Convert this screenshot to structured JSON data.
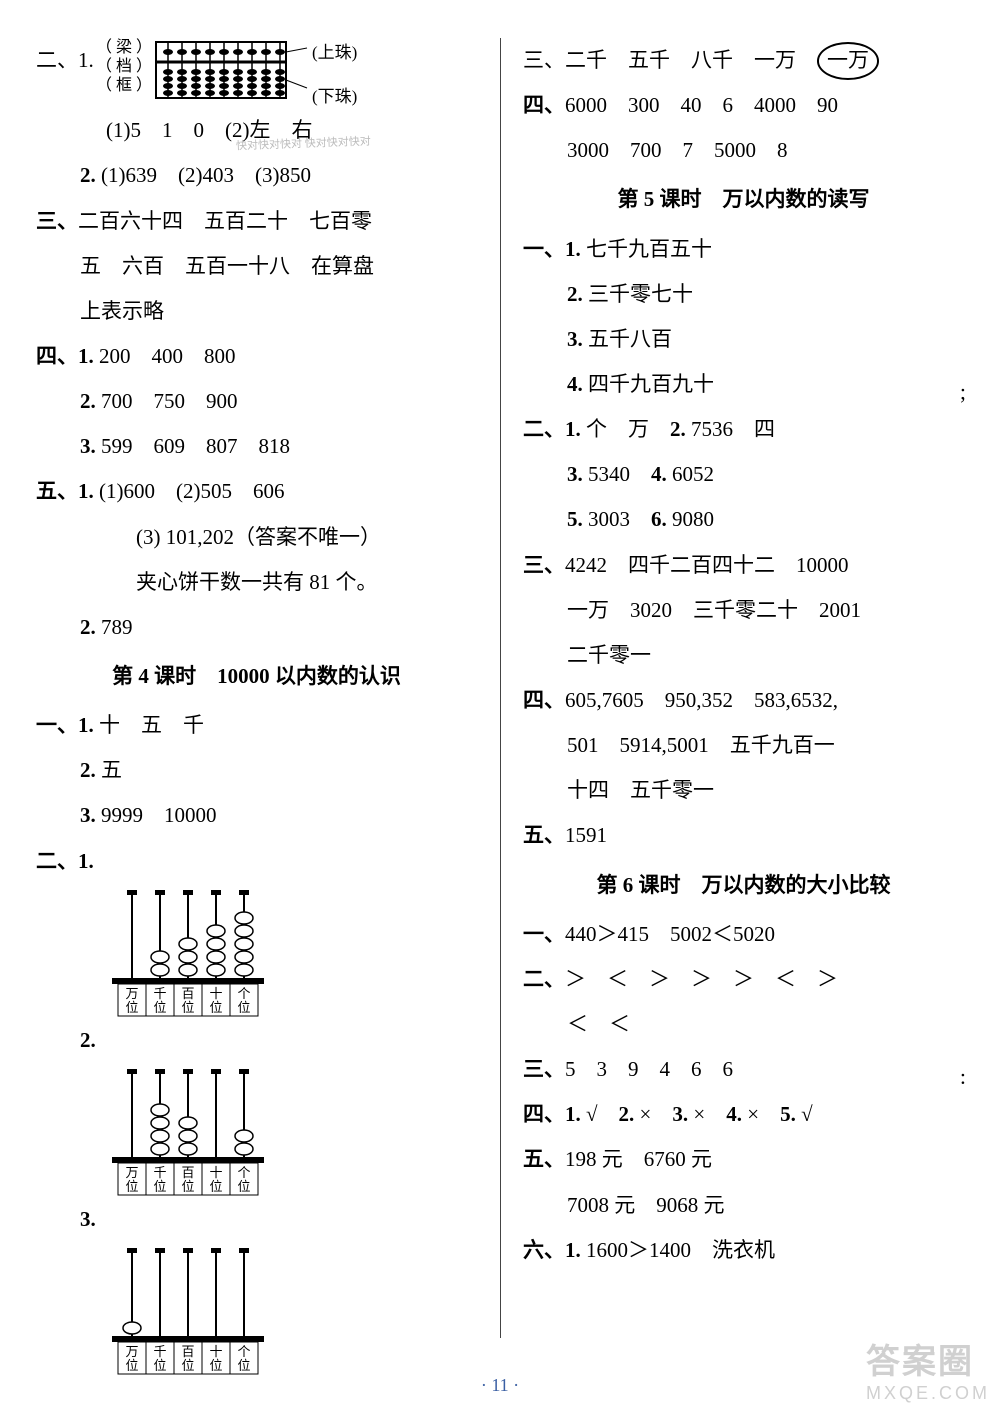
{
  "colors": {
    "text": "#000000",
    "bg": "#ffffff",
    "footer": "#3a5fa3",
    "watermark": "#d0d0d0",
    "divider": "#444444"
  },
  "font": {
    "body_size_pt": 16,
    "heading_weight": "bold"
  },
  "left": {
    "l1a": "二、1.",
    "l1_lab1": "（ 梁 ）",
    "l1_lab2": "（ 档 ）",
    "l1_lab3": "（ 框 ）",
    "l1_ann1": "(上珠)",
    "l1_ann2": "(下珠)",
    "l2": "(1)5　1　0　(2)左　右",
    "l3": "2. (1)639　(2)403　(3)850",
    "l4": "三、二百六十四　五百二十　七百零",
    "l5": "五　六百　五百一十八　在算盘",
    "l6": "上表示略",
    "l7": "四、1. 200　400　800",
    "l8": "2. 700　750　900",
    "l9": "3. 599　609　807　818",
    "l10": "五、1. (1)600　(2)505　606",
    "l11": "(3) 101,202（答案不唯一）",
    "l12": "夹心饼干数一共有 81 个。",
    "l13": "2. 789",
    "h1": "第 4 课时　10000 以内数的认识",
    "l14": "一、1. 十　五　千",
    "l15": "2. 五",
    "l16": "3. 9999　10000",
    "l17": "二、1.",
    "l18": "2.",
    "l19": "3.",
    "abacus_labels": [
      "万位",
      "千位",
      "百位",
      "十位",
      "个位"
    ],
    "abacus1_beads": [
      0,
      2,
      3,
      4,
      5
    ],
    "abacus2_beads": [
      0,
      4,
      3,
      0,
      2
    ],
    "abacus3_beads": [
      1,
      0,
      0,
      0,
      0
    ]
  },
  "right": {
    "r1_pre": "三、二千　五千　八千　一万　",
    "r1_circ": "一万",
    "r2": "四、6000　300　40　6　4000　90",
    "r3": "3000　700　7　5000　8",
    "h2": "第 5 课时　万以内数的读写",
    "r4": "一、1. 七千九百五十",
    "r5": "2. 三千零七十",
    "r6": "3. 五千八百",
    "r7": "4. 四千九百九十",
    "r8": "二、1. 个　万　2. 7536　四",
    "r9": "3. 5340　4. 6052",
    "r10": "5. 3003　6. 9080",
    "r11": "三、4242　四千二百四十二　10000",
    "r12": "一万　3020　三千零二十　2001",
    "r13": "二千零一",
    "r14": "四、605,7605　950,352　583,6532,",
    "r15": "501　5914,5001　五千九百一",
    "r16": "十四　五千零一",
    "r17": "五、1591",
    "h3": "第 6 课时　万以内数的大小比较",
    "r18": "一、440＞415　5002＜5020",
    "r19": "二、＞　＜　＞　＞　＞　＜　＞",
    "r20": "＜　＜",
    "r21": "三、5　3　9　4　6　6",
    "r22": "四、1. √　2. ×　3. ×　4. ×　5. √",
    "r23": "五、198 元　6760 元",
    "r24": "7008 元　9068 元",
    "r25": "六、1. 1600＞1400　洗衣机"
  },
  "footer": "· 11 ·",
  "watermark_top": "答案圈",
  "watermark_bottom": "MXQE.COM",
  "stamp": "快对快对快对\n快对快对快对"
}
